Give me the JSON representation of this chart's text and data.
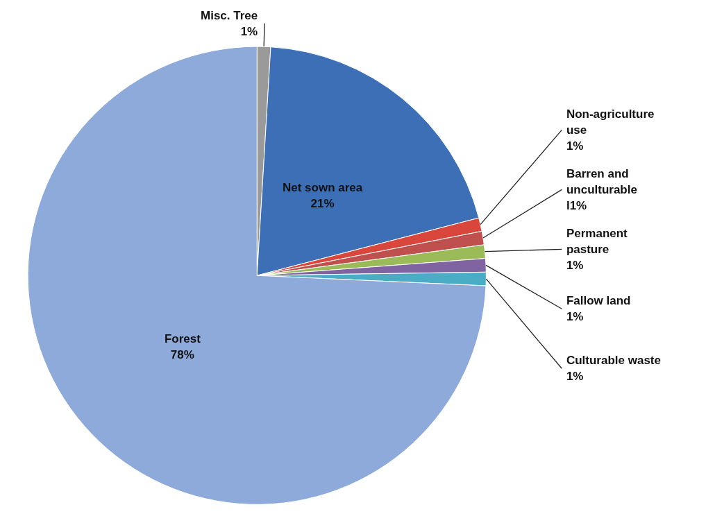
{
  "chart_data": {
    "type": "pie",
    "categories": [
      "Misc. Tree",
      "Net sown area",
      "Non-agriculture use",
      "Barren and unculturable",
      "Permanent pasture",
      "Fallow land",
      "Culturable waste",
      "Forest"
    ],
    "values": [
      1,
      21,
      1,
      1,
      1,
      1,
      1,
      78
    ],
    "value_labels": [
      "1%",
      "21%",
      "1%",
      "l1%",
      "1%",
      "1%",
      "1%",
      "78%"
    ],
    "colors": [
      "#9a9a9a",
      "#3c6fb6",
      "#d9473c",
      "#c0504d",
      "#9bbb59",
      "#8064a2",
      "#4bacc6",
      "#8eaadb"
    ]
  }
}
